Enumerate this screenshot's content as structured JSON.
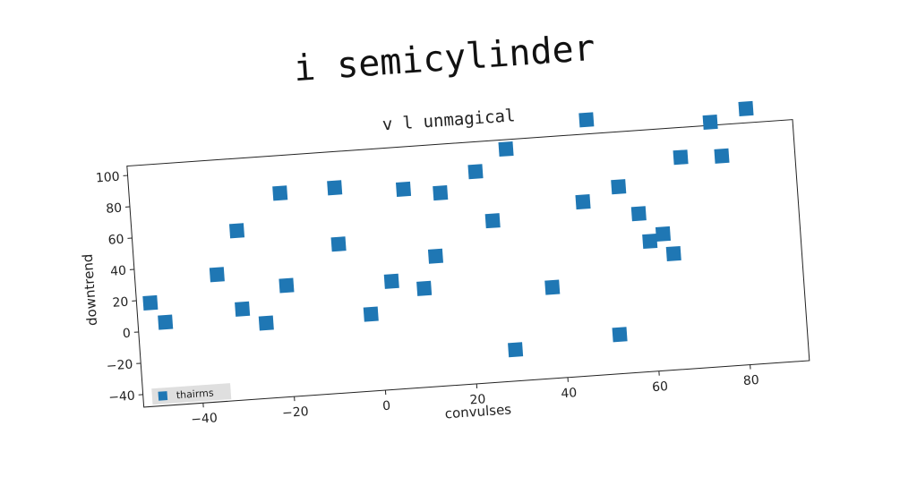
{
  "figure": {
    "suptitle": "i semicylinder"
  },
  "chart_data": {
    "type": "scatter",
    "title": "v l unmagical",
    "xlabel": "convulses",
    "ylabel": "downtrend",
    "xlim": [
      -53,
      93
    ],
    "ylim": [
      -48,
      106
    ],
    "xticks": [
      -40,
      -20,
      0,
      20,
      40,
      60,
      80
    ],
    "yticks": [
      -40,
      -20,
      0,
      20,
      40,
      60,
      80,
      100
    ],
    "legend": "bottom-left",
    "grid": false,
    "series": [
      {
        "name": "thairms",
        "color": "#1f77b4",
        "marker": "square",
        "points": [
          [
            -50,
            18
          ],
          [
            -47,
            5
          ],
          [
            -35,
            33
          ],
          [
            -30,
            10
          ],
          [
            -30,
            60
          ],
          [
            -25,
            0
          ],
          [
            -20,
            82
          ],
          [
            -20,
            23
          ],
          [
            -8,
            83
          ],
          [
            -8,
            47
          ],
          [
            -2,
            1
          ],
          [
            3,
            21
          ],
          [
            7,
            79
          ],
          [
            10,
            15
          ],
          [
            13,
            35
          ],
          [
            15,
            75
          ],
          [
            23,
            87
          ],
          [
            26,
            55
          ],
          [
            29,
            -28
          ],
          [
            30,
            100
          ],
          [
            38,
            10
          ],
          [
            46,
            63
          ],
          [
            48,
            115
          ],
          [
            52,
            -23
          ],
          [
            54,
            71
          ],
          [
            58,
            53
          ],
          [
            60,
            35
          ],
          [
            63,
            39
          ],
          [
            65,
            26
          ],
          [
            68,
            87
          ],
          [
            75,
            108
          ],
          [
            77,
            86
          ],
          [
            83,
            115
          ]
        ]
      }
    ]
  }
}
